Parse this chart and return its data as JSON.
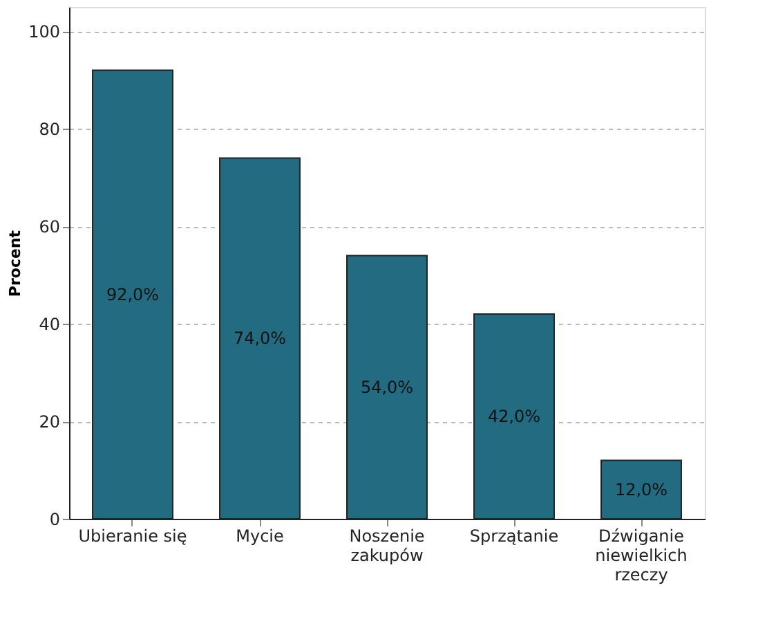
{
  "chart_data": {
    "type": "bar",
    "ylabel": "Procent",
    "categories": [
      "Ubieranie się",
      "Mycie",
      "Noszenie zakupów",
      "Sprzątanie",
      "Dźwiganie niewielkich rzeczy"
    ],
    "values": [
      92,
      74,
      54,
      42,
      12
    ],
    "value_labels": [
      "92,0%",
      "74,0%",
      "54,0%",
      "42,0%",
      "12,0%"
    ],
    "color": "#236b80",
    "ylim": [
      0,
      105
    ],
    "yticks": [
      0,
      20,
      40,
      60,
      80,
      100
    ],
    "grid": "y"
  }
}
